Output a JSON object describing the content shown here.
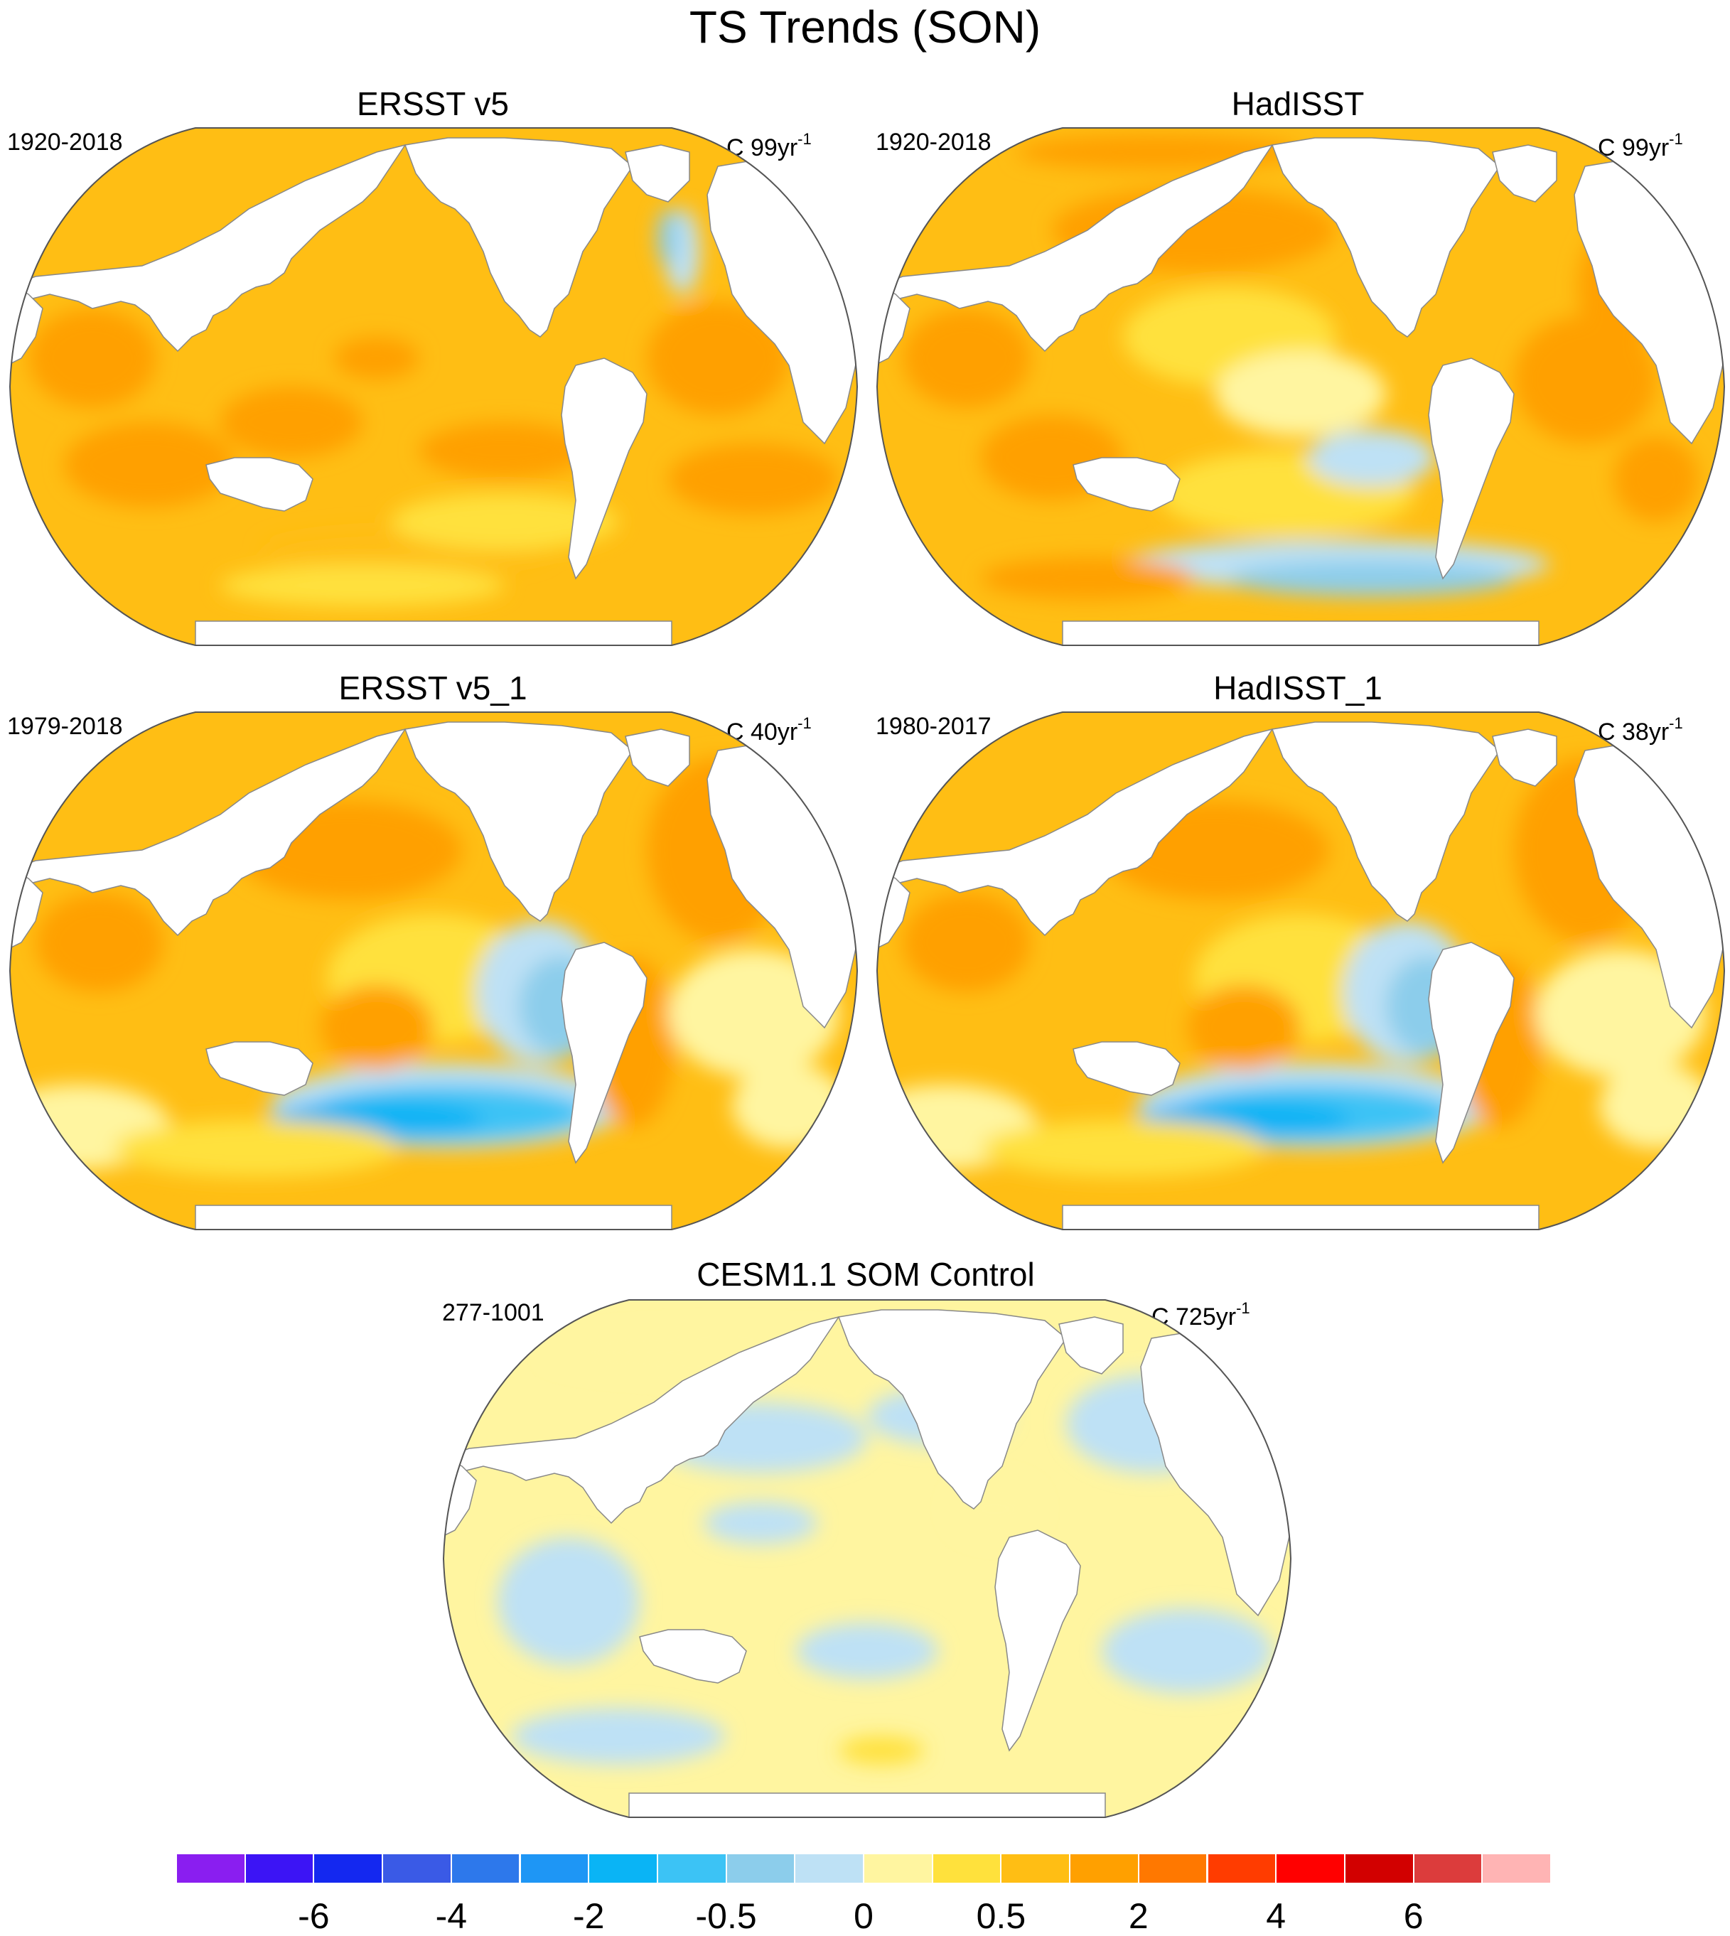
{
  "title": "TS Trends (SON)",
  "panels": [
    {
      "id": "p1",
      "title": "ERSST v5",
      "period": "1920-2018",
      "label_prefix": "C 99yr",
      "label_exp": "-1",
      "pattern": "warm"
    },
    {
      "id": "p2",
      "title": "HadISST",
      "period": "1920-2018",
      "label_prefix": "C 99yr",
      "label_exp": "-1",
      "pattern": "warm-south-cool"
    },
    {
      "id": "p3",
      "title": "ERSST v5_1",
      "period": "1979-2018",
      "label_prefix": "C 40yr",
      "label_exp": "-1",
      "pattern": "recent"
    },
    {
      "id": "p4",
      "title": "HadISST_1",
      "period": "1980-2017",
      "label_prefix": "C 38yr",
      "label_exp": "-1",
      "pattern": "recent"
    },
    {
      "id": "p5",
      "title": "CESM1.1 SOM Control",
      "period": "277-1001",
      "label_prefix": "C 725yr",
      "label_exp": "-1",
      "pattern": "neutral"
    }
  ],
  "colorbar": {
    "colors": [
      "#8a1ef0",
      "#3c14f5",
      "#1428f0",
      "#3a5ae6",
      "#2d78eb",
      "#1e96f5",
      "#0ab4f5",
      "#3cc3f5",
      "#8ccdeb",
      "#bee1f5",
      "#fff5a0",
      "#ffe13c",
      "#ffbe14",
      "#ffa000",
      "#ff7800",
      "#ff3c00",
      "#ff0000",
      "#d20000",
      "#dc3c3c",
      "#ffb4b4"
    ],
    "labels": [
      "-6",
      "-4",
      "-2",
      "-0.5",
      "0",
      "0.5",
      "2",
      "4",
      "6"
    ],
    "label_after_box": [
      2,
      4,
      6,
      8,
      10,
      12,
      14,
      16,
      18
    ]
  },
  "legend_colors": {
    "land": "#ffffff",
    "coast": "#888888",
    "border": "#555555"
  }
}
